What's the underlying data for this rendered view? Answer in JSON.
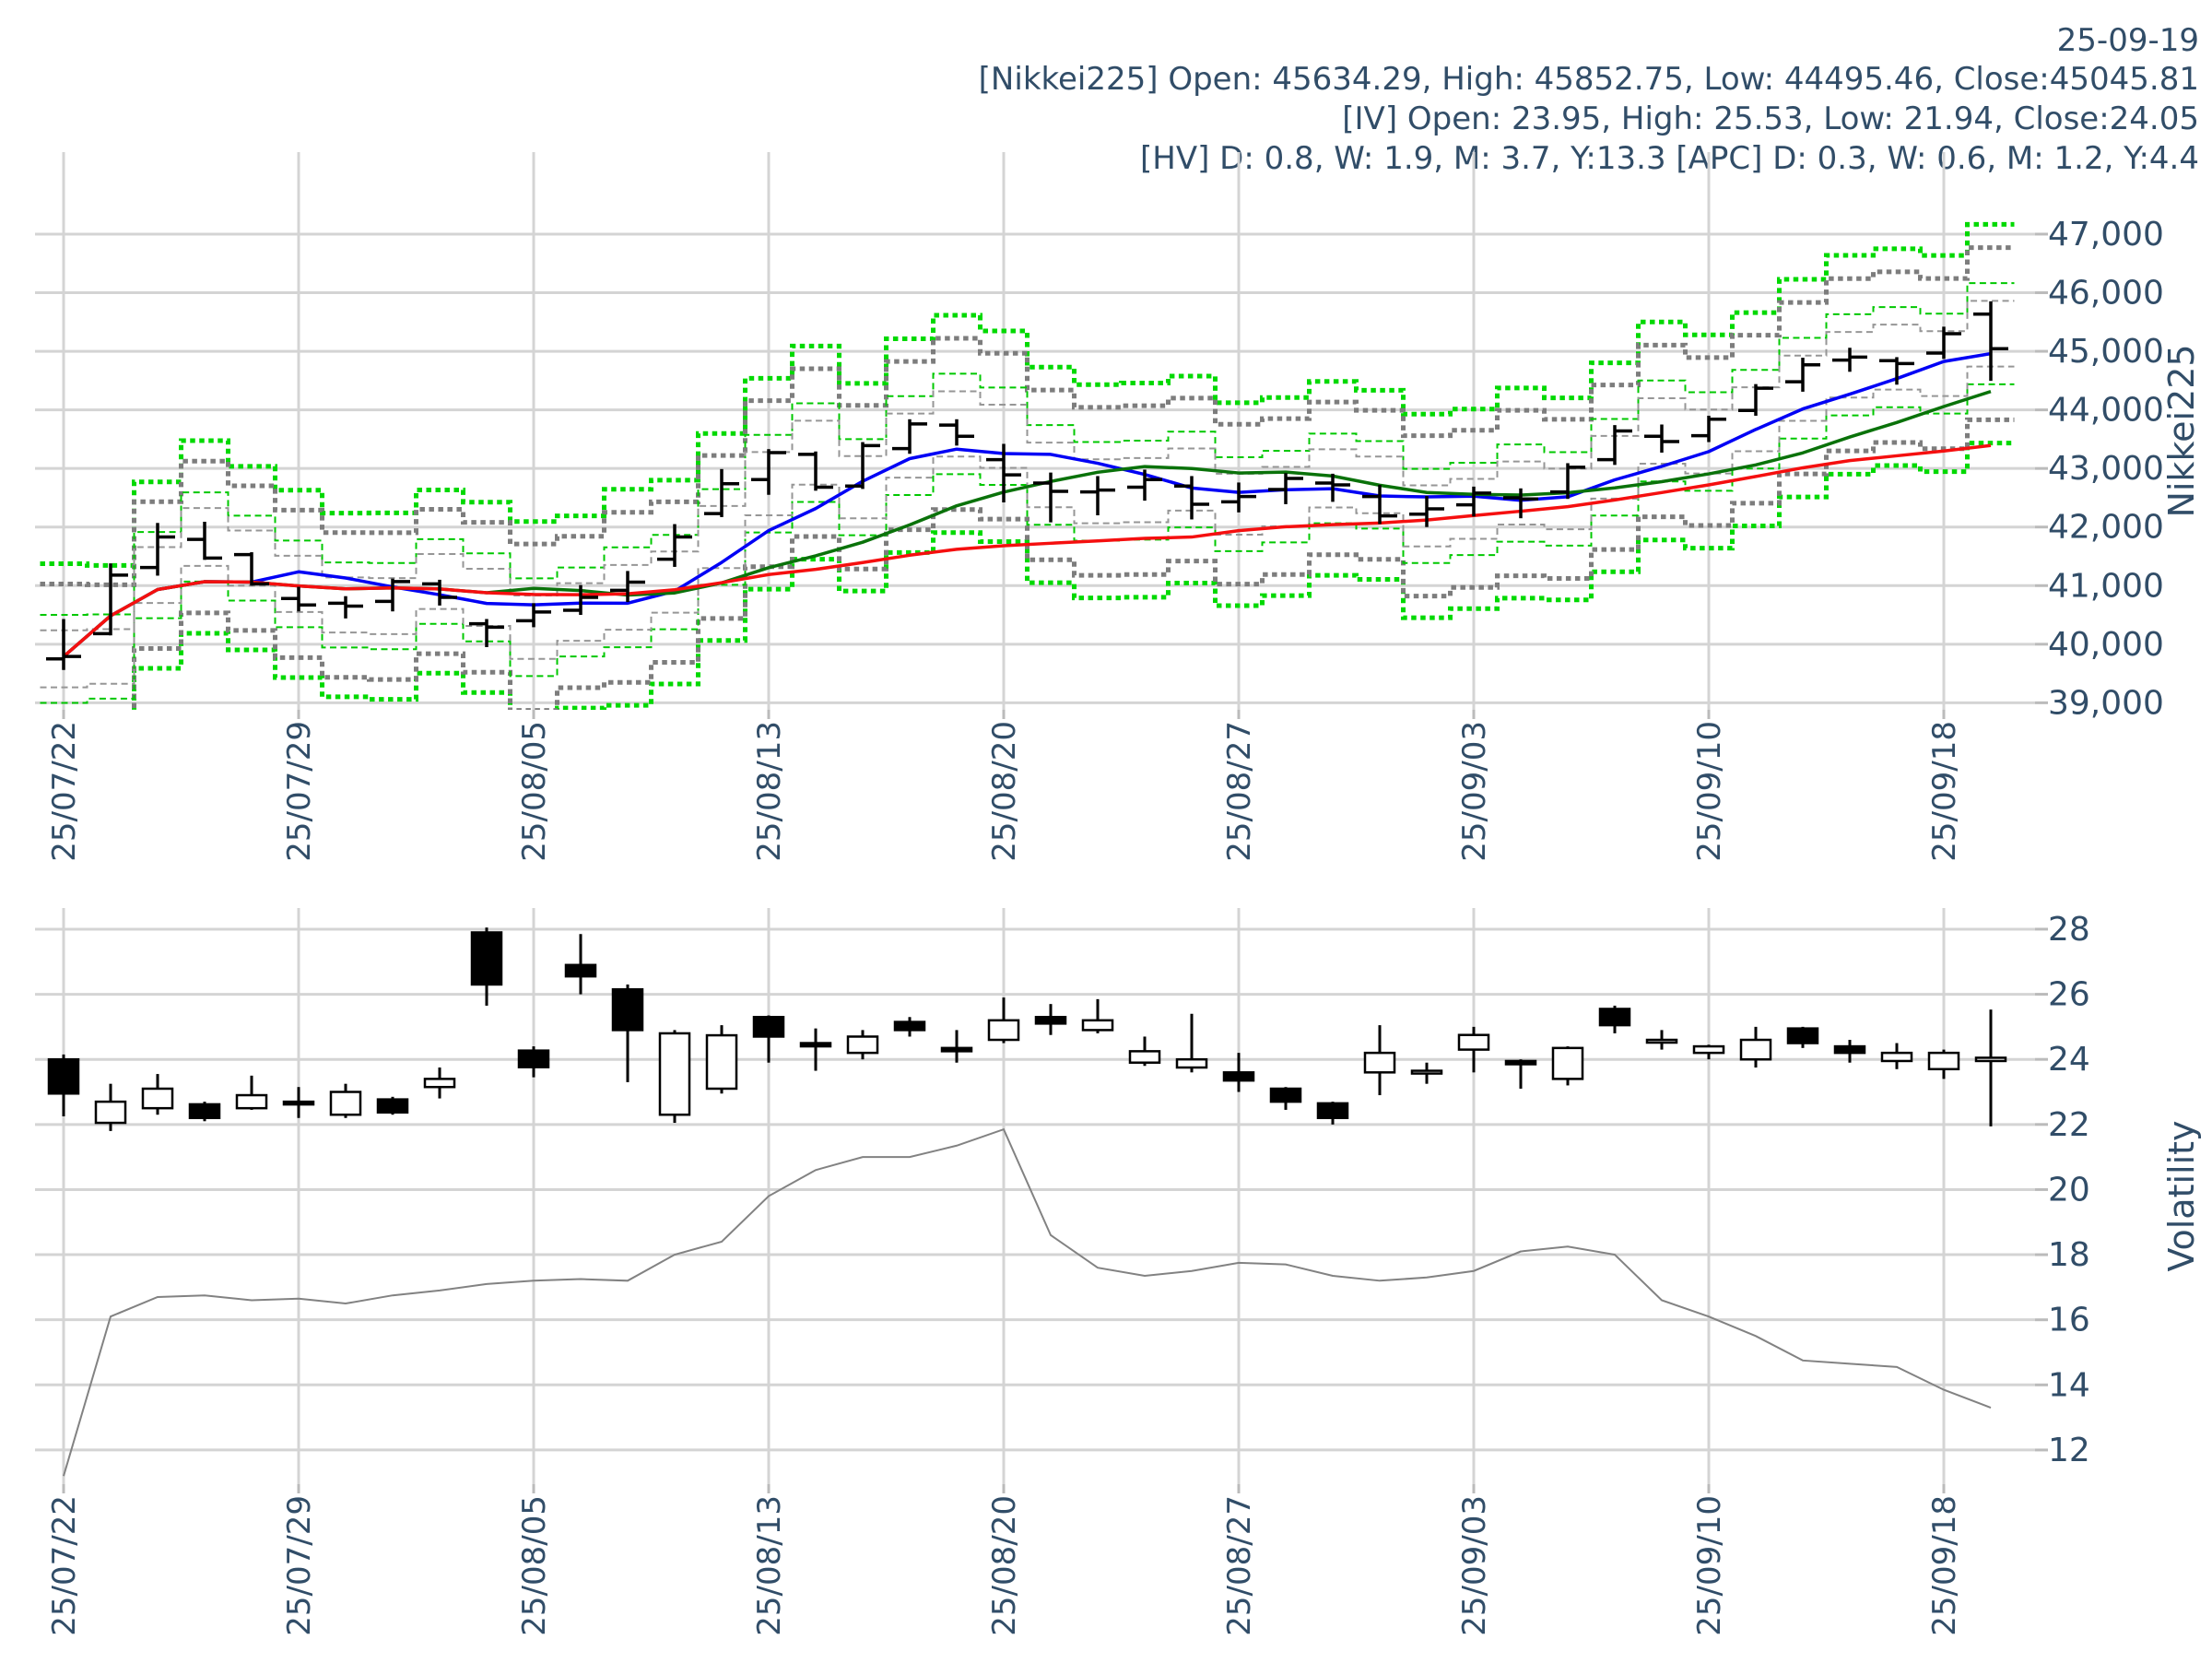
{
  "header": {
    "date": "25-09-19",
    "nikkei_line": "[Nikkei225] Open: 45634.29, High: 45852.75, Low: 44495.46, Close:45045.81",
    "iv_line": "[IV] Open: 23.95, High: 25.53, Low: 21.94, Close:24.05",
    "hv_line": "[HV] D: 0.8, W: 1.9, M: 3.7, Y:13.3 [APC] D: 0.3, W: 0.6, M: 1.2, Y:4.4"
  },
  "colors": {
    "text": "#314d68",
    "grid": "#d4d4d4",
    "candle": "#000000",
    "ma_short": "#0000f5",
    "ma_mid": "#0a720a",
    "ma_long": "#f50f0f",
    "band_green": "#00d900",
    "band_gray": "#7d7d7d",
    "band_green_thin": "#00c800",
    "band_gray_thin": "#969696",
    "hv_line": "#828282",
    "tick": "#bbbbbb"
  },
  "chart_data": [
    {
      "type": "ohlc-bar",
      "title_right": "Nikkei225",
      "ylim": [
        38880,
        48400
      ],
      "yticks": {
        "values": [
          39000,
          40000,
          41000,
          42000,
          43000,
          44000,
          45000,
          46000,
          47000
        ],
        "labels": [
          "39,000",
          "40,000",
          "41,000",
          "42,000",
          "43,000",
          "44,000",
          "45,000",
          "46,000",
          "47,000"
        ]
      },
      "xticks": {
        "positions": [
          0,
          5,
          10,
          15,
          20,
          25,
          30,
          35,
          40
        ],
        "labels": [
          "25/07/22",
          "25/07/29",
          "25/08/05",
          "25/08/13",
          "25/08/20",
          "25/08/27",
          "25/09/03",
          "25/09/10",
          "25/09/18"
        ]
      },
      "dates": [
        "25/07/22",
        "25/07/23",
        "25/07/24",
        "25/07/25",
        "25/07/28",
        "25/07/29",
        "25/07/30",
        "25/07/31",
        "25/08/01",
        "25/08/04",
        "25/08/05",
        "25/08/06",
        "25/08/07",
        "25/08/08",
        "25/08/12",
        "25/08/13",
        "25/08/14",
        "25/08/15",
        "25/08/18",
        "25/08/19",
        "25/08/20",
        "25/08/21",
        "25/08/22",
        "25/08/25",
        "25/08/26",
        "25/08/27",
        "25/08/28",
        "25/08/29",
        "25/09/01",
        "25/09/02",
        "25/09/03",
        "25/09/04",
        "25/09/05",
        "25/09/08",
        "25/09/09",
        "25/09/10",
        "25/09/11",
        "25/09/12",
        "25/09/16",
        "25/09/17",
        "25/09/18",
        "25/09/19"
      ],
      "open": [
        39750,
        40180,
        41310,
        41790,
        41530,
        40780,
        40700,
        40730,
        41030,
        40350,
        40400,
        40580,
        40920,
        41450,
        42230,
        42810,
        43240,
        42700,
        43340,
        43740,
        43150,
        42750,
        42600,
        42680,
        42700,
        42430,
        42640,
        42750,
        42520,
        42220,
        42380,
        42500,
        42600,
        43150,
        43550,
        43560,
        43990,
        44480,
        44850,
        44840,
        44970,
        45634
      ],
      "high": [
        40430,
        41380,
        42070,
        42090,
        41570,
        40980,
        40820,
        41120,
        41100,
        40430,
        40700,
        41010,
        41250,
        42050,
        42990,
        43330,
        43290,
        43450,
        43840,
        43840,
        43420,
        42930,
        42870,
        42980,
        42870,
        42760,
        42920,
        42910,
        42720,
        42530,
        42690,
        42660,
        43090,
        43740,
        43750,
        43900,
        44440,
        44890,
        45060,
        44900,
        45420,
        45852
      ],
      "low": [
        39560,
        40150,
        41170,
        41440,
        41000,
        40560,
        40440,
        40560,
        40660,
        39950,
        40290,
        40500,
        40720,
        41320,
        42170,
        42550,
        42620,
        42650,
        43250,
        43390,
        42420,
        42080,
        42200,
        42450,
        42130,
        42250,
        42390,
        42430,
        42050,
        42000,
        42180,
        42150,
        42480,
        43060,
        43270,
        43450,
        43900,
        44310,
        44650,
        44430,
        44870,
        44495
      ],
      "close": [
        39790,
        41180,
        41830,
        41470,
        41030,
        40670,
        40650,
        41070,
        40800,
        40290,
        40550,
        40800,
        41060,
        41830,
        42740,
        43270,
        42680,
        43390,
        43760,
        43550,
        42890,
        42610,
        42630,
        42810,
        42390,
        42520,
        42830,
        42720,
        42190,
        42310,
        42580,
        42480,
        43020,
        43640,
        43460,
        43840,
        44370,
        44770,
        44900,
        44790,
        45300,
        45045
      ],
      "moving_averages": [
        {
          "name": "ma-5d",
          "window": 5,
          "color_key": "ma_short"
        },
        {
          "name": "ma-10d",
          "window": 10,
          "color_key": "ma_mid"
        },
        {
          "name": "ma-25d",
          "window": 25,
          "color_key": "ma_long"
        }
      ],
      "bands": {
        "anchor": "previous_close",
        "iv_ref": 23.5,
        "series": [
          {
            "name": "band-green-thick",
            "pct": 0.04,
            "color_key": "band_green",
            "width": 5,
            "dash": "5.5 4.5"
          },
          {
            "name": "band-gray-thick",
            "pct": 0.0315,
            "color_key": "band_gray",
            "width": 5,
            "dash": "5.5 4.5"
          },
          {
            "name": "band-green-thin",
            "pct": 0.0185,
            "color_key": "band_green_thin",
            "width": 2,
            "dash": "7 4.5"
          },
          {
            "name": "band-gray-thin",
            "pct": 0.012,
            "color_key": "band_gray_thin",
            "width": 2,
            "dash": "7 4.5"
          }
        ]
      }
    },
    {
      "type": "candlestick",
      "title_right": "Volatility",
      "ylim": [
        10.95,
        28.65
      ],
      "yticks": {
        "values": [
          12,
          14,
          16,
          18,
          20,
          22,
          24,
          26,
          28
        ],
        "labels": [
          "12",
          "14",
          "16",
          "18",
          "20",
          "22",
          "24",
          "26",
          "28"
        ]
      },
      "xticks": {
        "positions": [
          0,
          5,
          10,
          15,
          20,
          25,
          30,
          35,
          40
        ],
        "labels": [
          "25/07/22",
          "25/07/29",
          "25/08/05",
          "25/08/13",
          "25/08/20",
          "25/08/27",
          "25/09/03",
          "25/09/10",
          "25/09/18"
        ]
      },
      "open": [
        24.0,
        22.05,
        22.5,
        22.62,
        22.5,
        22.7,
        22.3,
        22.77,
        23.15,
        27.9,
        24.27,
        26.9,
        26.15,
        22.3,
        23.1,
        25.3,
        24.5,
        24.2,
        25.15,
        24.35,
        24.6,
        25.3,
        24.9,
        23.9,
        23.75,
        23.6,
        23.1,
        22.65,
        23.6,
        23.6,
        24.3,
        23.95,
        23.4,
        25.55,
        24.6,
        24.2,
        24.0,
        24.95,
        24.4,
        23.95,
        23.7,
        23.95
      ],
      "high": [
        24.15,
        23.25,
        23.55,
        22.7,
        23.5,
        23.15,
        23.25,
        22.85,
        23.75,
        28.05,
        24.4,
        27.85,
        26.3,
        24.9,
        25.05,
        25.35,
        24.95,
        24.9,
        25.3,
        24.9,
        25.9,
        25.7,
        25.85,
        24.7,
        25.4,
        24.2,
        23.15,
        22.7,
        25.05,
        23.9,
        25.0,
        24.0,
        24.4,
        25.65,
        24.9,
        24.45,
        25.0,
        25.0,
        24.6,
        24.5,
        24.3,
        25.53
      ],
      "low": [
        22.25,
        21.8,
        22.3,
        22.1,
        22.45,
        22.2,
        22.2,
        22.3,
        22.8,
        25.65,
        23.45,
        26.0,
        23.3,
        22.05,
        22.95,
        23.9,
        23.65,
        24.0,
        24.7,
        23.9,
        24.5,
        24.75,
        24.8,
        23.8,
        23.6,
        23.0,
        22.45,
        22.0,
        22.9,
        23.25,
        23.6,
        23.1,
        23.2,
        24.8,
        24.3,
        24.0,
        23.75,
        24.35,
        23.9,
        23.7,
        23.4,
        21.94
      ],
      "close": [
        22.95,
        22.7,
        23.1,
        22.2,
        22.9,
        22.65,
        23.0,
        22.37,
        23.4,
        26.3,
        23.76,
        26.55,
        24.9,
        24.8,
        24.74,
        24.7,
        24.4,
        24.7,
        24.9,
        24.25,
        25.2,
        25.1,
        25.2,
        24.25,
        24.0,
        23.35,
        22.7,
        22.2,
        24.2,
        23.65,
        24.75,
        23.85,
        24.35,
        25.05,
        24.6,
        24.4,
        24.6,
        24.5,
        24.2,
        24.2,
        24.2,
        24.05
      ],
      "hv_series": {
        "name": "historical-volatility",
        "values": [
          11.2,
          16.1,
          16.7,
          16.75,
          16.6,
          16.65,
          16.5,
          16.75,
          16.9,
          17.1,
          17.2,
          17.25,
          17.2,
          18.0,
          18.4,
          19.8,
          20.6,
          21.0,
          21.0,
          21.35,
          21.85,
          18.6,
          17.6,
          17.35,
          17.5,
          17.75,
          17.7,
          17.35,
          17.2,
          17.3,
          17.5,
          18.1,
          18.25,
          18.0,
          16.6,
          16.1,
          15.5,
          14.75,
          14.65,
          14.55,
          13.85,
          13.3
        ]
      }
    }
  ]
}
